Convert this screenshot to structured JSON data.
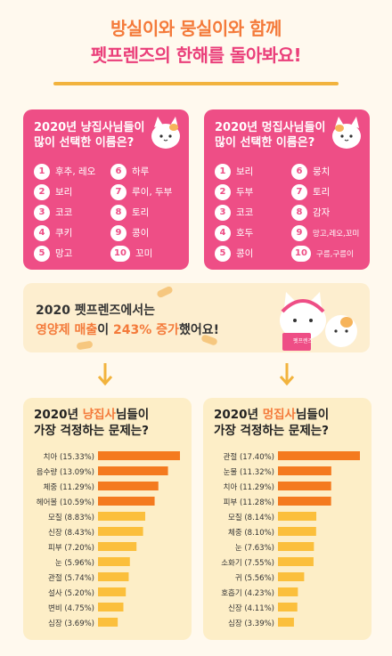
{
  "header": {
    "line1": "방실이와 뭉실이와 함께",
    "line2": "펫프렌즈의 한해를 돌아봐요!"
  },
  "cat_names": {
    "title_line1": "2020년 냥집사님들이",
    "title_line2": "많이 선택한 이름은?",
    "ranks": [
      {
        "num": "1",
        "name": "후추, 레오"
      },
      {
        "num": "2",
        "name": "보리"
      },
      {
        "num": "3",
        "name": "코코"
      },
      {
        "num": "4",
        "name": "쿠키"
      },
      {
        "num": "5",
        "name": "망고"
      },
      {
        "num": "6",
        "name": "하루"
      },
      {
        "num": "7",
        "name": "루이, 두부"
      },
      {
        "num": "8",
        "name": "토리"
      },
      {
        "num": "9",
        "name": "콩이"
      },
      {
        "num": "10",
        "name": "꼬미"
      }
    ]
  },
  "dog_names": {
    "title_line1": "2020년 멍집사님들이",
    "title_line2": "많이 선택한 이름은?",
    "ranks": [
      {
        "num": "1",
        "name": "보리"
      },
      {
        "num": "2",
        "name": "두부"
      },
      {
        "num": "3",
        "name": "코코"
      },
      {
        "num": "4",
        "name": "호두"
      },
      {
        "num": "5",
        "name": "콩이"
      },
      {
        "num": "6",
        "name": "뭉치"
      },
      {
        "num": "7",
        "name": "토리"
      },
      {
        "num": "8",
        "name": "감자"
      },
      {
        "num": "9",
        "name": "망고,레오,꼬미"
      },
      {
        "num": "10",
        "name": "구름,구름이"
      }
    ]
  },
  "sales": {
    "line1": "2020 펫프렌즈에서는",
    "line2_hl1": "영양제 매출",
    "line2_mid": "이 ",
    "line2_hl2": "243% 증가",
    "line2_end": "했어요!",
    "badge": "펫프렌즈"
  },
  "colors": {
    "pink": "#ee4e86",
    "orange": "#f47a3a",
    "bar_dark": "#f47a1f",
    "bar_light": "#fbbf3c",
    "panel": "#fdeec7"
  },
  "chart_data": [
    {
      "type": "bar",
      "title_pre": "2020년 ",
      "title_hl": "냥집사",
      "title_post": "님들이",
      "title_line2": "가장 걱정하는 문제는?",
      "categories": [
        "치아 (15.33%)",
        "음수량 (13.09%)",
        "체중 (11.29%)",
        "헤어볼 (10.59%)",
        "모질 (8.83%)",
        "신장 (8.43%)",
        "피부 (7.20%)",
        "눈 (5.96%)",
        "관절 (5.74%)",
        "설사 (5.20%)",
        "변비 (4.75%)",
        "심장 (3.69%)"
      ],
      "values": [
        15.33,
        13.09,
        11.29,
        10.59,
        8.83,
        8.43,
        7.2,
        5.96,
        5.74,
        5.2,
        4.75,
        3.69
      ],
      "orientation": "horizontal",
      "xlim": [
        0,
        15.33
      ]
    },
    {
      "type": "bar",
      "title_pre": "2020년 ",
      "title_hl": "멍집사",
      "title_post": "님들이",
      "title_line2": "가장 걱정하는 문제는?",
      "categories": [
        "관절 (17.40%)",
        "눈물 (11.32%)",
        "치아 (11.29%)",
        "피부 (11.28%)",
        "모질 (8.14%)",
        "체중 (8.10%)",
        "눈 (7.63%)",
        "소화기 (7.55%)",
        "귀 (5.56%)",
        "호흡기 (4.23%)",
        "신장 (4.11%)",
        "심장 (3.39%)"
      ],
      "values": [
        17.4,
        11.32,
        11.29,
        11.28,
        8.14,
        8.1,
        7.63,
        7.55,
        5.56,
        4.23,
        4.11,
        3.39
      ],
      "orientation": "horizontal",
      "xlim": [
        0,
        17.4
      ]
    }
  ]
}
